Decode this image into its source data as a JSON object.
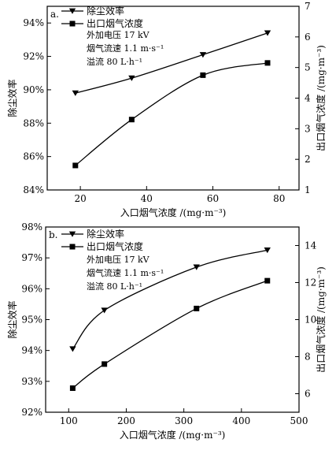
{
  "chart_data": [
    {
      "panel_label": "a.",
      "type": "line",
      "xlabel": "入口烟气浓度 /(mg·m⁻³)",
      "ylabel": "除尘效率",
      "y2label": "出口烟气浓度 /(mg·m⁻³)",
      "xlim": [
        10,
        86
      ],
      "ylim": [
        84,
        95
      ],
      "y2lim": [
        1,
        7
      ],
      "xticks": [
        20,
        40,
        60,
        80
      ],
      "yticks": [
        84,
        86,
        88,
        90,
        92,
        94
      ],
      "ytick_labels": [
        "84%",
        "86%",
        "88%",
        "90%",
        "92%",
        "94%"
      ],
      "y2ticks": [
        1,
        2,
        3,
        4,
        5,
        6,
        7
      ],
      "legend": [
        "除尘效率",
        "出口烟气浓度"
      ],
      "annotation": [
        "外加电压 17 kV",
        "烟气流速 1.1 m·s⁻¹",
        "溢流 80 L·h⁻¹"
      ],
      "series": [
        {
          "name": "除尘效率",
          "marker": "triangle-down",
          "axis": "left",
          "x": [
            18.5,
            35.5,
            57,
            76.5
          ],
          "y": [
            89.8,
            90.7,
            92.1,
            93.4
          ]
        },
        {
          "name": "出口烟气浓度",
          "marker": "square",
          "axis": "right",
          "x": [
            18.5,
            35.5,
            57,
            76.5
          ],
          "y": [
            1.8,
            3.3,
            4.75,
            5.15
          ]
        }
      ]
    },
    {
      "panel_label": "b.",
      "type": "line",
      "xlabel": "入口烟气浓度 /(mg·m⁻³)",
      "ylabel": "除尘效率",
      "y2label": "出口烟气浓度 /(mg·m⁻³)",
      "xlim": [
        60,
        500
      ],
      "ylim": [
        92,
        98
      ],
      "y2lim": [
        5,
        15
      ],
      "xticks": [
        100,
        200,
        300,
        400,
        500
      ],
      "yticks": [
        92,
        93,
        94,
        95,
        96,
        97,
        98
      ],
      "ytick_labels": [
        "92%",
        "93%",
        "94%",
        "95%",
        "96%",
        "97%",
        "98%"
      ],
      "y2ticks": [
        6,
        8,
        10,
        12,
        14
      ],
      "legend": [
        "除尘效率",
        "出口烟气浓度"
      ],
      "annotation": [
        "外加电压 17 kV",
        "烟气流速 1.1 m·s⁻¹",
        "溢流 80 L·h⁻¹"
      ],
      "series": [
        {
          "name": "除尘效率",
          "marker": "triangle-down",
          "axis": "left",
          "x": [
            107,
            162,
            322,
            445
          ],
          "y": [
            94.05,
            95.3,
            96.7,
            97.25
          ]
        },
        {
          "name": "出口烟气浓度",
          "marker": "square",
          "axis": "right",
          "x": [
            107,
            162,
            322,
            445
          ],
          "y": [
            6.3,
            7.6,
            10.6,
            12.1
          ]
        }
      ]
    }
  ]
}
